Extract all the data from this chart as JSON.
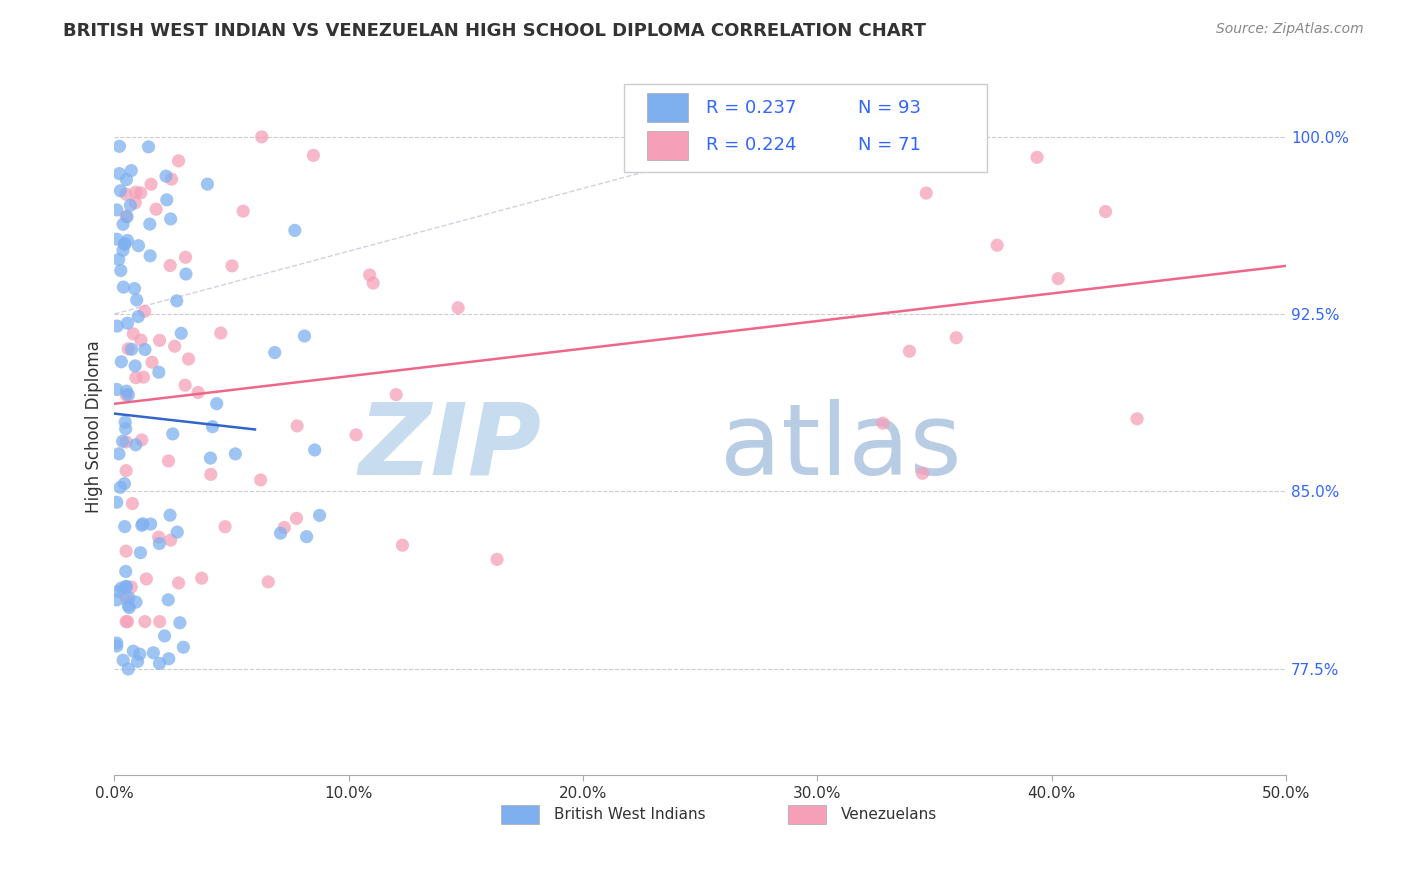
{
  "title": "BRITISH WEST INDIAN VS VENEZUELAN HIGH SCHOOL DIPLOMA CORRELATION CHART",
  "source": "Source: ZipAtlas.com",
  "ylabel": "High School Diploma",
  "ytick_labels": [
    "77.5%",
    "85.0%",
    "92.5%",
    "100.0%"
  ],
  "ytick_values": [
    0.775,
    0.85,
    0.925,
    1.0
  ],
  "xtick_labels": [
    "0.0%",
    "10.0%",
    "20.0%",
    "30.0%",
    "40.0%",
    "50.0%"
  ],
  "xtick_values": [
    0.0,
    0.1,
    0.2,
    0.3,
    0.4,
    0.5
  ],
  "xlim": [
    0.0,
    0.5
  ],
  "ylim": [
    0.73,
    1.025
  ],
  "legend_r1": "R = 0.237",
  "legend_n1": "N = 93",
  "legend_r2": "R = 0.224",
  "legend_n2": "N = 71",
  "color_blue": "#7EB0F0",
  "color_pink": "#F5A0B8",
  "color_trendline_blue": "#3366CC",
  "color_trendline_pink": "#EE6688",
  "color_diagonal": "#CCCCDD",
  "color_grid": "#CCCCCC",
  "color_ytick": "#3366FF",
  "color_text": "#333333",
  "color_source": "#888888",
  "watermark_zip_color": "#C8DCEF",
  "watermark_atlas_color": "#B8CCE4"
}
